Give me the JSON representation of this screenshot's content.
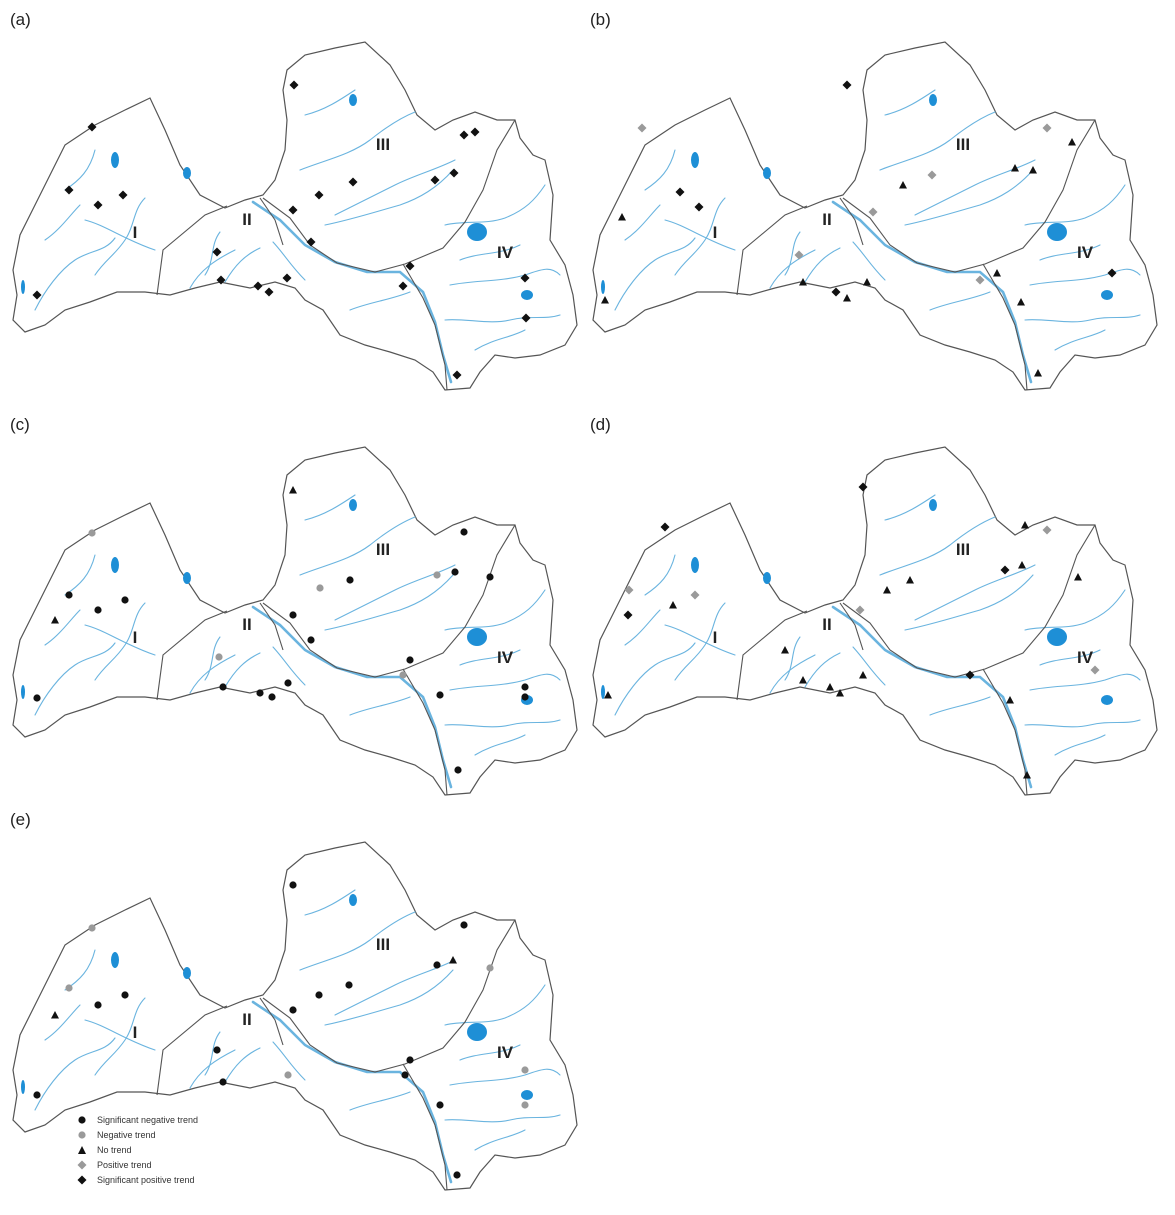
{
  "panels": [
    {
      "id": "a",
      "label": "(a)"
    },
    {
      "id": "b",
      "label": "(b)"
    },
    {
      "id": "c",
      "label": "(c)"
    },
    {
      "id": "d",
      "label": "(d)"
    },
    {
      "id": "e",
      "label": "(e)"
    }
  ],
  "regions": [
    "I",
    "II",
    "III",
    "IV"
  ],
  "legend": [
    {
      "key": "sig_neg",
      "label": "Significant negative trend",
      "shape": "circle",
      "color": "#111111"
    },
    {
      "key": "neg",
      "label": "Negative trend",
      "shape": "circle",
      "color": "#9a9a9a"
    },
    {
      "key": "none",
      "label": "No trend",
      "shape": "triangle",
      "color": "#111111"
    },
    {
      "key": "pos",
      "label": "Positive trend",
      "shape": "diamond",
      "color": "#9a9a9a"
    },
    {
      "key": "sig_pos",
      "label": "Significant positive trend",
      "shape": "diamond",
      "color": "#111111"
    }
  ],
  "colors": {
    "border": "#555555",
    "river": "#6ab4df",
    "lake": "#1e8fd6",
    "land": "#ffffff"
  }
}
